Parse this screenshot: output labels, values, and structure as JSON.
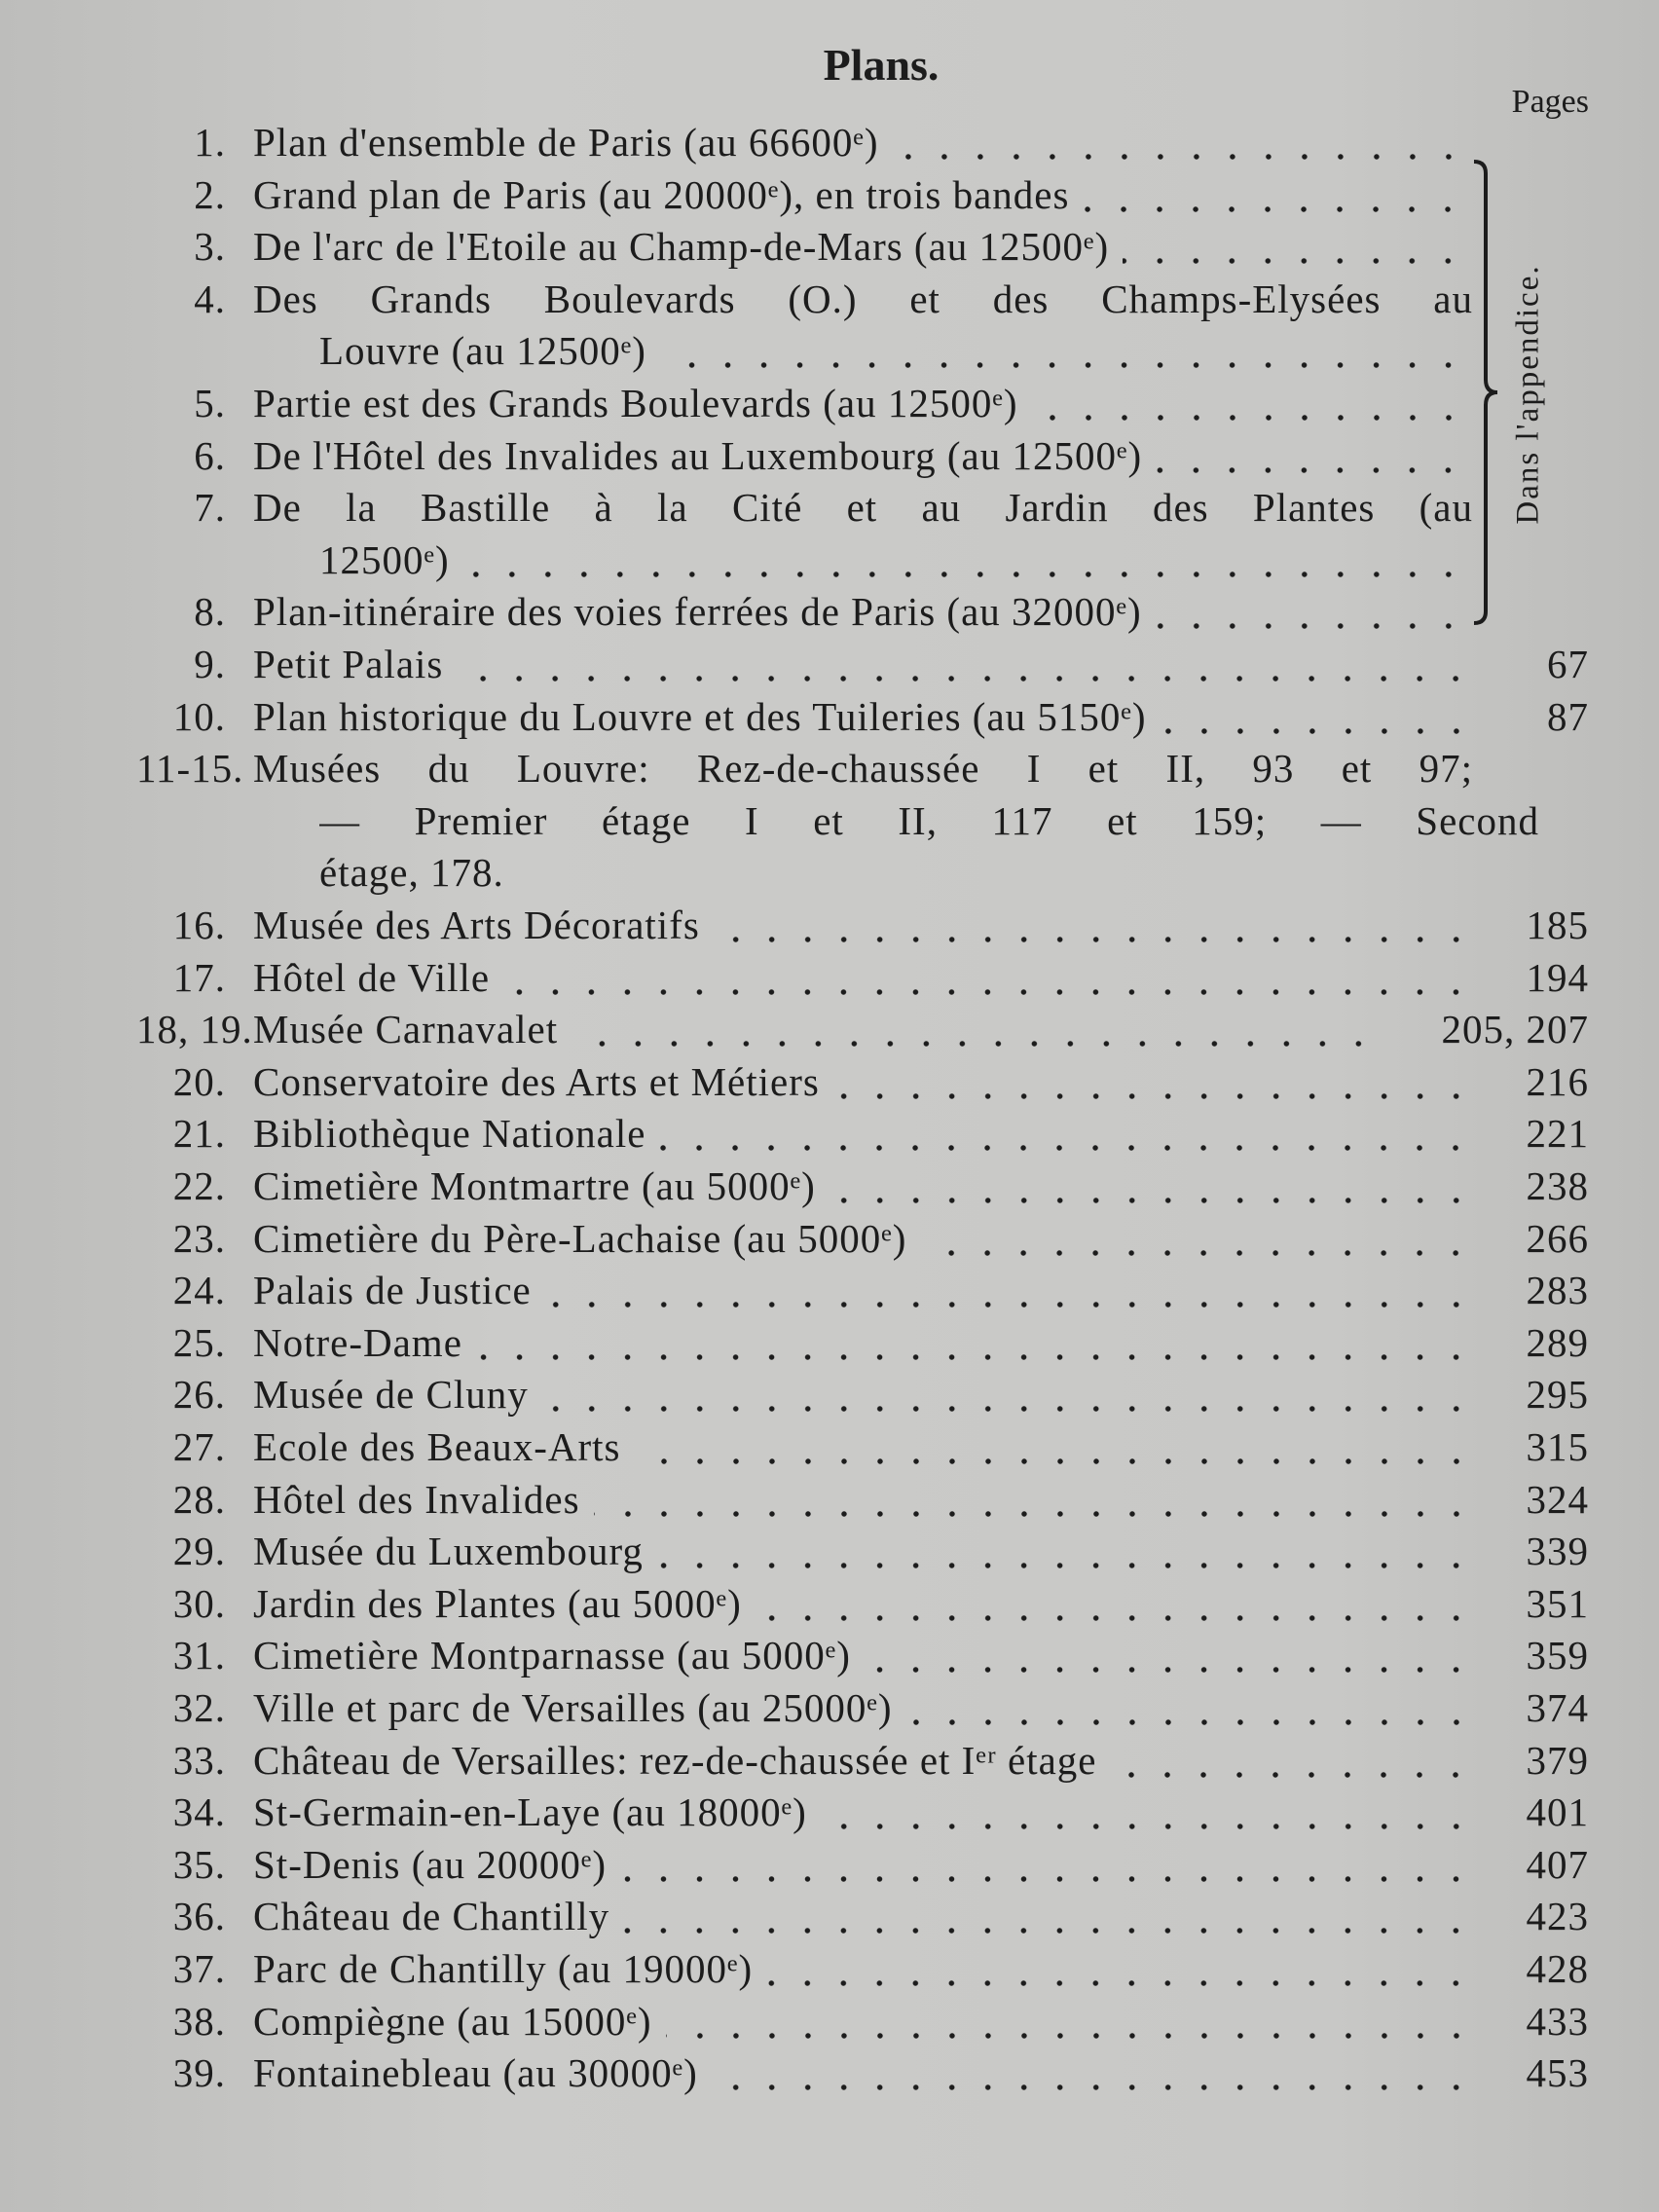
{
  "header": {
    "title": "Plans.",
    "pages_label": "Pages"
  },
  "bracket_label": "Dans l'appendice.",
  "entries": [
    {
      "number": "1.",
      "lines": [
        "Plan d'ensemble de Paris (au 66600ᵉ)"
      ]
    },
    {
      "number": "2.",
      "lines": [
        "Grand plan de Paris (au 20000ᵉ), en trois bandes"
      ]
    },
    {
      "number": "3.",
      "lines": [
        "De l'arc de l'Etoile au Champ-de-Mars (au 12500ᵉ)"
      ]
    },
    {
      "number": "4.",
      "lines": [
        "Des Grands Boulevards (O.) et des Champs-Elysées au",
        "Louvre (au 12500ᵉ)"
      ]
    },
    {
      "number": "5.",
      "lines": [
        "Partie est des Grands Boulevards (au 12500ᵉ)"
      ]
    },
    {
      "number": "6.",
      "lines": [
        "De l'Hôtel des Invalides au Luxembourg (au 12500ᵉ)"
      ]
    },
    {
      "number": "7.",
      "lines": [
        "De la Bastille à la Cité et au Jardin des Plantes (au",
        "12500ᵉ)"
      ]
    },
    {
      "number": "8.",
      "lines": [
        "Plan-itinéraire des voies ferrées de Paris (au 32000ᵉ)"
      ]
    },
    {
      "number": "9.",
      "lines": [
        "Petit Palais"
      ],
      "page": "67"
    },
    {
      "number": "10.",
      "lines": [
        "Plan historique du Louvre et des Tuileries (au 5150ᵉ)"
      ],
      "page": "87"
    },
    {
      "number": "11-15.",
      "lines": [
        "Musées du Louvre: Rez-de-chaussée I et II, 93 et 97;",
        "— Premier étage I et II, 117 et 159; — Second",
        "étage, 178."
      ],
      "leader": false
    },
    {
      "number": "16.",
      "lines": [
        "Musée des Arts Décoratifs"
      ],
      "page": "185"
    },
    {
      "number": "17.",
      "lines": [
        "Hôtel de Ville"
      ],
      "page": "194"
    },
    {
      "number": "18, 19.",
      "lines": [
        "Musée Carnavalet"
      ],
      "page": "205, 207"
    },
    {
      "number": "20.",
      "lines": [
        "Conservatoire des Arts et Métiers"
      ],
      "page": "216"
    },
    {
      "number": "21.",
      "lines": [
        "Bibliothèque Nationale"
      ],
      "page": "221"
    },
    {
      "number": "22.",
      "lines": [
        "Cimetière Montmartre (au 5000ᵉ)"
      ],
      "page": "238"
    },
    {
      "number": "23.",
      "lines": [
        "Cimetière du Père-Lachaise (au 5000ᵉ)"
      ],
      "page": "266"
    },
    {
      "number": "24.",
      "lines": [
        "Palais de Justice"
      ],
      "page": "283"
    },
    {
      "number": "25.",
      "lines": [
        "Notre-Dame"
      ],
      "page": "289"
    },
    {
      "number": "26.",
      "lines": [
        "Musée de Cluny"
      ],
      "page": "295"
    },
    {
      "number": "27.",
      "lines": [
        "Ecole des Beaux-Arts"
      ],
      "page": "315"
    },
    {
      "number": "28.",
      "lines": [
        "Hôtel des Invalides"
      ],
      "page": "324"
    },
    {
      "number": "29.",
      "lines": [
        "Musée du Luxembourg"
      ],
      "page": "339"
    },
    {
      "number": "30.",
      "lines": [
        "Jardin des Plantes (au 5000ᵉ)"
      ],
      "page": "351"
    },
    {
      "number": "31.",
      "lines": [
        "Cimetière Montparnasse (au 5000ᵉ)"
      ],
      "page": "359"
    },
    {
      "number": "32.",
      "lines": [
        "Ville et parc de Versailles (au 25000ᵉ)"
      ],
      "page": "374"
    },
    {
      "number": "33.",
      "lines": [
        "Château de Versailles: rez-de-chaussée et Iᵉʳ étage"
      ],
      "page": "379"
    },
    {
      "number": "34.",
      "lines": [
        "St-Germain-en-Laye (au 18000ᵉ)"
      ],
      "page": "401"
    },
    {
      "number": "35.",
      "lines": [
        "St-Denis (au 20000ᵉ)"
      ],
      "page": "407"
    },
    {
      "number": "36.",
      "lines": [
        "Château de Chantilly"
      ],
      "page": "423"
    },
    {
      "number": "37.",
      "lines": [
        "Parc de Chantilly (au 19000ᵉ)"
      ],
      "page": "428"
    },
    {
      "number": "38.",
      "lines": [
        "Compiègne (au 15000ᵉ)"
      ],
      "page": "433"
    },
    {
      "number": "39.",
      "lines": [
        "Fontainebleau (au 30000ᵉ)"
      ],
      "page": "453"
    }
  ]
}
